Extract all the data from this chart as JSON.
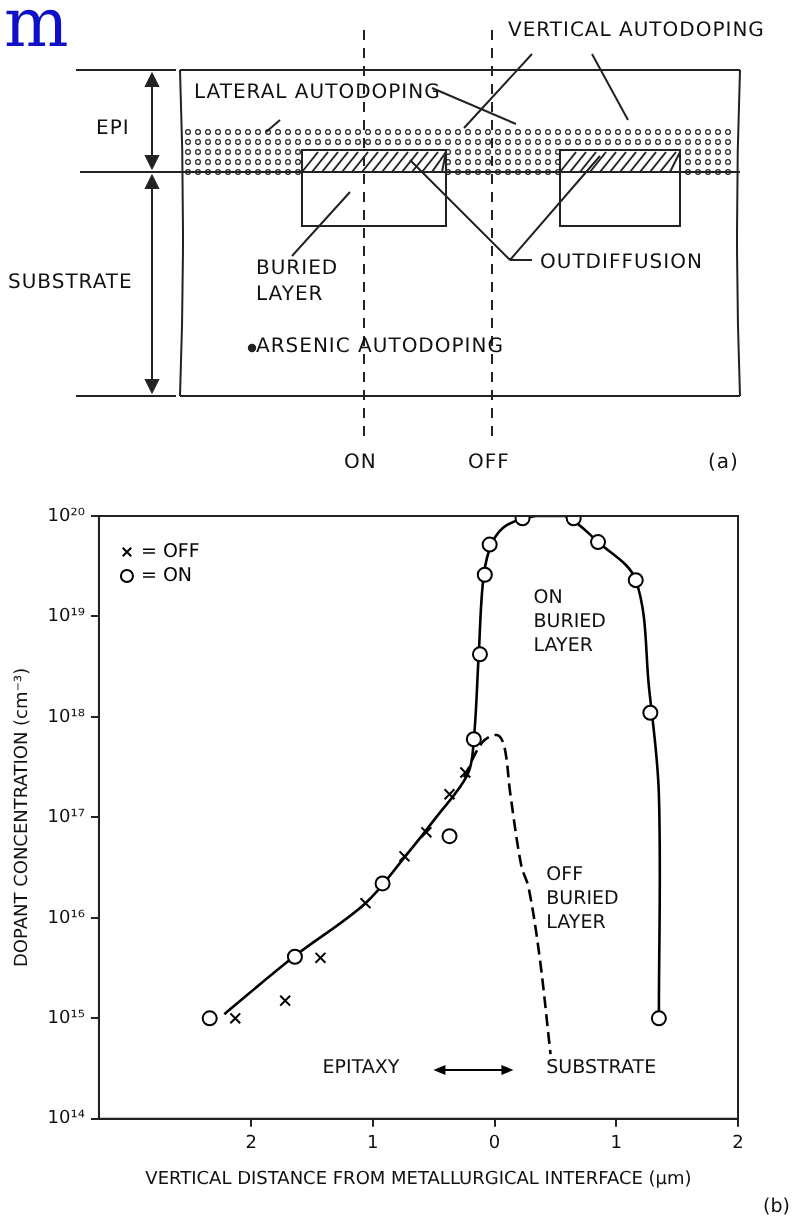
{
  "chart_data": [
    {
      "type": "other",
      "annotations": [
        "m",
        "VERTICAL AUTODOPING",
        "LATERAL AUTODOPING",
        "EPI",
        "SUBSTRATE",
        "BURIED\nLAYER",
        "OUTDIFFUSION",
        "ARSENIC AUTODOPING",
        "ON",
        "OFF",
        "(a)"
      ]
    },
    {
      "type": "scatter",
      "xlabel": "VERTICAL DISTANCE FROM METALLURGICAL INTERFACE (μm)",
      "ylabel": "DOPANT CONCENTRATION (cm⁻³)",
      "log": "y",
      "xlim": [
        3.25,
        -2
      ],
      "xticks": [
        2,
        1,
        0,
        {
          "value": -1,
          "label": "1"
        },
        {
          "value": -2,
          "label": "2"
        }
      ],
      "ylim": [
        100000000000000.0,
        1e+20
      ],
      "yticks": [
        {
          "value": 100000000000000.0,
          "label": "10¹⁴"
        },
        {
          "value": 1000000000000000.0,
          "label": "10¹⁵"
        },
        {
          "value": 1e+16,
          "label": "10¹⁶"
        },
        {
          "value": 1e+17,
          "label": "10¹⁷"
        },
        {
          "value": 1e+18,
          "label": "10¹⁸"
        },
        {
          "value": 1e+19,
          "label": "10¹⁹"
        },
        {
          "value": 1e+20,
          "label": "10²⁰"
        }
      ],
      "legend": "top left",
      "grid": false,
      "series": [
        {
          "name": "= OFF",
          "type": "scatter",
          "marker": "cross",
          "color": "#000000",
          "x": [
            2.13,
            1.72,
            1.43,
            1.06,
            0.74,
            0.56,
            0.37,
            0.24
          ],
          "values": [
            1000000000000000.0,
            1500000000000000.0,
            4000000000000000.0,
            1.4e+16,
            4.1e+16,
            7.1e+16,
            1.7e+17,
            2.8e+17
          ]
        },
        {
          "name": "= ON",
          "type": "scatter",
          "marker": "circle",
          "color": "#000000",
          "x": [
            2.34,
            1.64,
            0.92,
            0.37,
            0.17,
            0.12,
            0.08,
            0.04,
            -0.23,
            -0.65,
            -0.85,
            -1.16,
            -1.28,
            -1.35
          ],
          "values": [
            1000000000000000.0,
            4100000000000000.0,
            2.2e+16,
            6.5e+16,
            6e+17,
            4.2e+18,
            2.6e+19,
            5.2e+19,
            9.5e+19,
            9.5e+19,
            5.5e+19,
            2.3e+19,
            1.1e+18,
            1000000000000000.0
          ]
        },
        {
          "type": "line",
          "marker": "none",
          "line_style": "solid",
          "color": "#000000",
          "x": [
            2.22,
            1.65,
            1.06,
            0.74,
            0.48,
            0.22,
            0.17,
            0.13,
            0.09,
            0.02,
            -0.1,
            -0.34,
            -0.58,
            -0.85,
            -1.16,
            -1.27,
            -1.35,
            -1.35
          ],
          "values": [
            1100000000000000.0,
            4100000000000000.0,
            1.4e+16,
            4e+16,
            1e+17,
            2.7e+17,
            6e+17,
            4.2e+18,
            2.5e+19,
            5.4e+19,
            8.1e+19,
            1e+20,
            1e+20,
            5.5e+19,
            2.3e+19,
            1.9e+18,
            1.7e+17,
            1000000000000000.0
          ]
        },
        {
          "type": "line",
          "marker": "none",
          "line_style": "dashed",
          "color": "#000000",
          "x": [
            0.25,
            0.1,
            -0.02,
            -0.08,
            -0.13,
            -0.22,
            -0.28,
            -0.37,
            -0.46
          ],
          "values": [
            2.5e+17,
            5.6e+17,
            6.6e+17,
            5.1e+17,
            1.7e+17,
            3.3e+16,
            2e+16,
            4100000000000000.0,
            440000000000000.0
          ]
        }
      ],
      "annotations": [
        "ON\nBURIED\nLAYER",
        "OFF\nBURIED\nLAYER",
        "EPITAXY",
        "SUBSTRATE",
        "(b)"
      ]
    }
  ]
}
